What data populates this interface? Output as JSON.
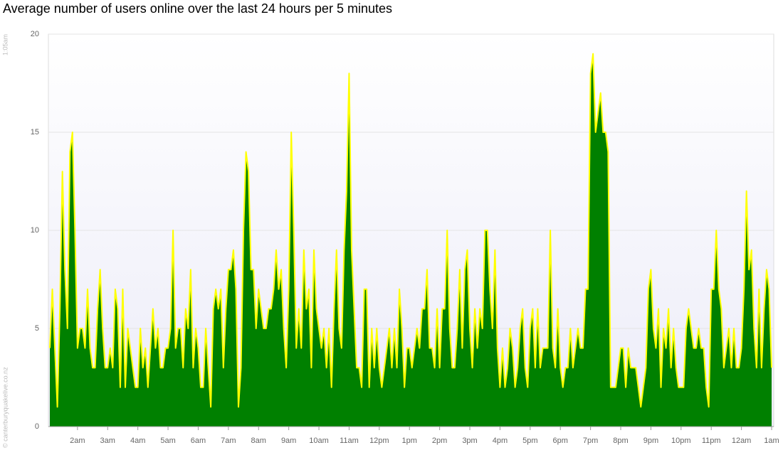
{
  "chart_data": {
    "type": "area",
    "title": "Average number of users online over the last 24 hours per 5 minutes",
    "side_label": "1:05am",
    "credit": "© canterburyquakelive.co.nz",
    "categories": [
      null,
      null,
      null,
      null,
      null,
      null,
      null,
      null,
      null,
      null,
      null,
      "2am",
      null,
      null,
      null,
      null,
      null,
      null,
      null,
      null,
      null,
      null,
      null,
      "3am",
      null,
      null,
      null,
      null,
      null,
      null,
      null,
      null,
      null,
      null,
      null,
      "4am",
      null,
      null,
      null,
      null,
      null,
      null,
      null,
      null,
      null,
      null,
      null,
      "5am",
      null,
      null,
      null,
      null,
      null,
      null,
      null,
      null,
      null,
      null,
      null,
      "6am",
      null,
      null,
      null,
      null,
      null,
      null,
      null,
      null,
      null,
      null,
      null,
      "7am",
      null,
      null,
      null,
      null,
      null,
      null,
      null,
      null,
      null,
      null,
      null,
      "8am",
      null,
      null,
      null,
      null,
      null,
      null,
      null,
      null,
      null,
      null,
      null,
      "9am",
      null,
      null,
      null,
      null,
      null,
      null,
      null,
      null,
      null,
      null,
      null,
      "10am",
      null,
      null,
      null,
      null,
      null,
      null,
      null,
      null,
      null,
      null,
      null,
      "11am",
      null,
      null,
      null,
      null,
      null,
      null,
      null,
      null,
      null,
      null,
      null,
      "12pm",
      null,
      null,
      null,
      null,
      null,
      null,
      null,
      null,
      null,
      null,
      null,
      "1pm",
      null,
      null,
      null,
      null,
      null,
      null,
      null,
      null,
      null,
      null,
      null,
      "2pm",
      null,
      null,
      null,
      null,
      null,
      null,
      null,
      null,
      null,
      null,
      null,
      "3pm",
      null,
      null,
      null,
      null,
      null,
      null,
      null,
      null,
      null,
      null,
      null,
      "4pm",
      null,
      null,
      null,
      null,
      null,
      null,
      null,
      null,
      null,
      null,
      null,
      "5pm",
      null,
      null,
      null,
      null,
      null,
      null,
      null,
      null,
      null,
      null,
      null,
      "6pm",
      null,
      null,
      null,
      null,
      null,
      null,
      null,
      null,
      null,
      null,
      null,
      "7pm",
      null,
      null,
      null,
      null,
      null,
      null,
      null,
      null,
      null,
      null,
      null,
      "8pm",
      null,
      null,
      null,
      null,
      null,
      null,
      null,
      null,
      null,
      null,
      null,
      "9pm",
      null,
      null,
      null,
      null,
      null,
      null,
      null,
      null,
      null,
      null,
      null,
      "10pm",
      null,
      null,
      null,
      null,
      null,
      null,
      null,
      null,
      null,
      null,
      null,
      "11pm",
      null,
      null,
      null,
      null,
      null,
      null,
      null,
      null,
      null,
      null,
      null,
      "12am",
      null,
      null,
      null,
      null,
      null,
      null,
      null,
      null,
      null,
      null,
      null,
      "1am"
    ],
    "values": [
      4,
      7,
      4,
      1,
      6,
      13,
      8,
      5,
      14,
      15,
      10,
      4,
      5,
      5,
      4,
      7,
      4,
      3,
      3,
      6,
      8,
      5,
      3,
      3,
      4,
      3,
      7,
      6,
      2,
      7,
      2,
      5,
      4,
      3,
      2,
      2,
      5,
      3,
      4,
      2,
      4,
      6,
      4,
      5,
      3,
      3,
      4,
      4,
      5,
      10,
      4,
      5,
      5,
      3,
      6,
      5,
      8,
      3,
      5,
      4,
      2,
      2,
      5,
      3,
      1,
      6,
      7,
      6,
      7,
      3,
      6,
      8,
      8,
      9,
      7,
      1,
      3,
      10,
      14,
      13,
      8,
      8,
      5,
      7,
      6,
      5,
      5,
      6,
      6,
      7,
      9,
      7,
      8,
      5,
      3,
      7,
      15,
      10,
      4,
      6,
      4,
      9,
      6,
      7,
      3,
      9,
      6,
      5,
      4,
      5,
      3,
      5,
      2,
      6,
      9,
      5,
      4,
      9,
      12,
      18,
      9,
      6,
      3,
      3,
      2,
      7,
      7,
      2,
      5,
      3,
      5,
      3,
      2,
      3,
      4,
      5,
      3,
      5,
      3,
      7,
      5,
      2,
      4,
      4,
      3,
      4,
      5,
      4,
      6,
      6,
      8,
      4,
      4,
      3,
      6,
      3,
      6,
      6,
      10,
      5,
      3,
      3,
      5,
      8,
      4,
      8,
      9,
      5,
      3,
      6,
      4,
      6,
      5,
      10,
      10,
      7,
      5,
      9,
      4,
      2,
      4,
      2,
      3,
      5,
      4,
      2,
      3,
      5,
      6,
      3,
      2,
      5,
      6,
      3,
      6,
      3,
      4,
      4,
      4,
      10,
      4,
      3,
      6,
      3,
      2,
      3,
      3,
      5,
      3,
      4,
      5,
      4,
      4,
      7,
      7,
      18,
      19,
      15,
      16,
      17,
      15,
      15,
      14,
      2,
      2,
      2,
      3,
      4,
      4,
      2,
      4,
      3,
      3,
      3,
      2,
      1,
      2,
      3,
      7,
      8,
      5,
      4,
      6,
      2,
      5,
      4,
      6,
      3,
      5,
      3,
      2,
      2,
      2,
      5,
      6,
      5,
      4,
      4,
      5,
      4,
      4,
      2,
      1,
      7,
      7,
      10,
      7,
      6,
      3,
      4,
      5,
      3,
      5,
      3,
      3,
      4,
      7,
      12,
      8,
      9,
      5,
      3,
      7,
      3,
      6,
      8,
      7,
      3
    ],
    "color": "#008000",
    "line_color": "#ffff00",
    "ylim": [
      0,
      20
    ],
    "yticks": [
      0,
      5,
      10,
      15,
      20
    ],
    "grid": true
  }
}
